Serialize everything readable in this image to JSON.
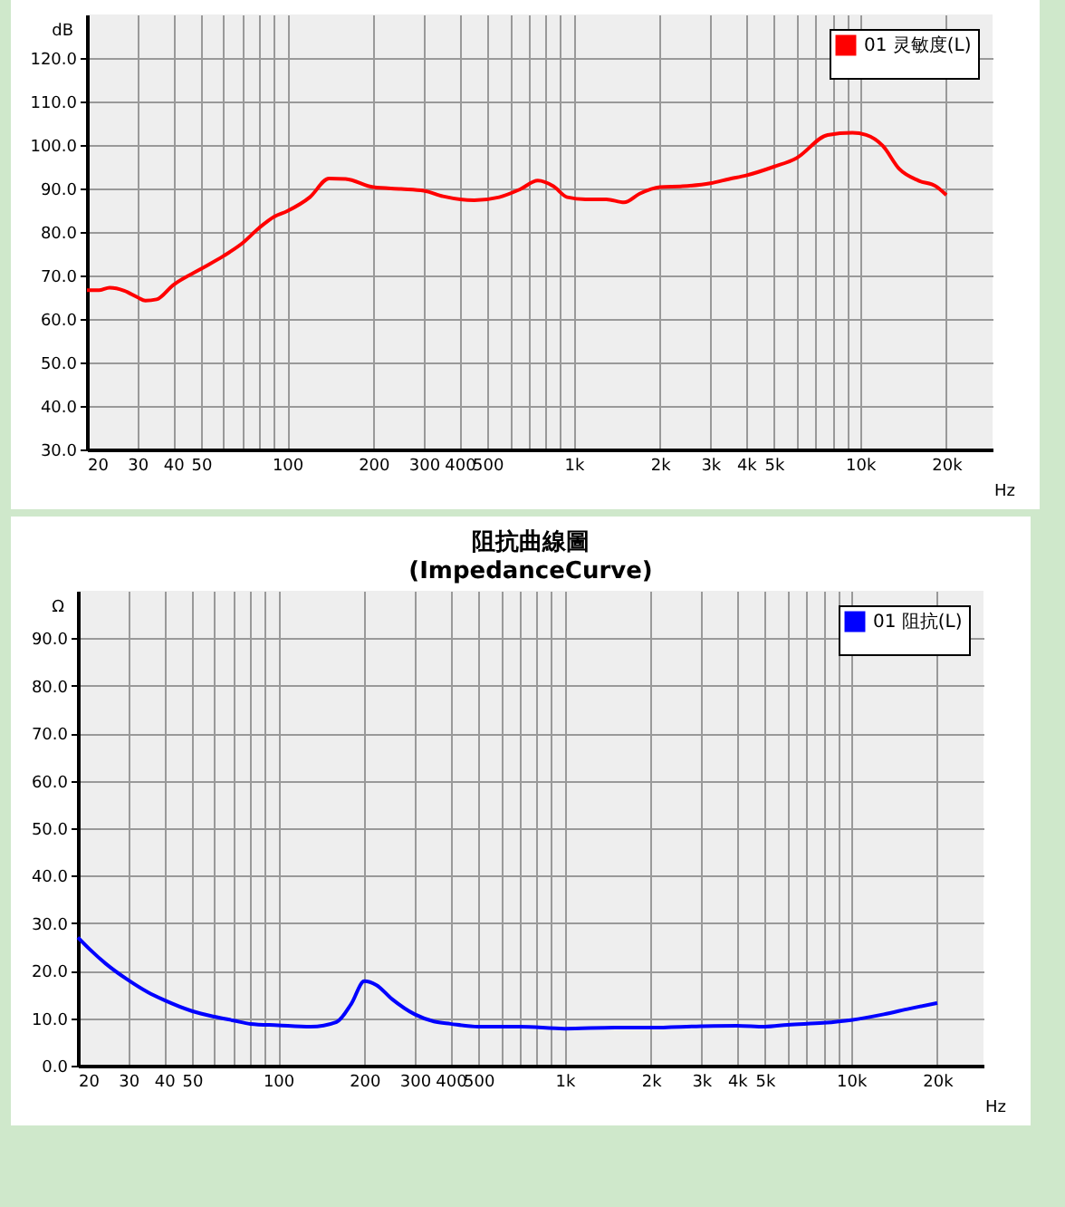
{
  "chart_data": [
    {
      "type": "line",
      "xlabel": "Hz",
      "ylabel": "dB",
      "log": "x",
      "grid": true,
      "legend": "top right",
      "xlim": [
        20,
        29000
      ],
      "ylim": [
        30,
        130
      ],
      "xticks": [
        20,
        30,
        40,
        50,
        {
          "value": 60,
          "label": null
        },
        {
          "value": 70,
          "label": null
        },
        {
          "value": 80,
          "label": null
        },
        {
          "value": 90,
          "label": null
        },
        100,
        200,
        300,
        400,
        500,
        {
          "value": 600,
          "label": null
        },
        {
          "value": 700,
          "label": null
        },
        {
          "value": 800,
          "label": null
        },
        {
          "value": 900,
          "label": null
        },
        {
          "value": 1000,
          "label": "1k"
        },
        {
          "value": 2000,
          "label": "2k"
        },
        {
          "value": 3000,
          "label": "3k"
        },
        {
          "value": 4000,
          "label": "4k"
        },
        {
          "value": 5000,
          "label": "5k"
        },
        {
          "value": 6000,
          "label": null
        },
        {
          "value": 7000,
          "label": null
        },
        {
          "value": 8000,
          "label": null
        },
        {
          "value": 9000,
          "label": null
        },
        {
          "value": 10000,
          "label": "10k"
        },
        {
          "value": 20000,
          "label": "20k"
        }
      ],
      "yticks": [
        {
          "value": 30,
          "label": "30.0"
        },
        {
          "value": 40,
          "label": "40.0"
        },
        {
          "value": 50,
          "label": "50.0"
        },
        {
          "value": 60,
          "label": "60.0"
        },
        {
          "value": 70,
          "label": "70.0"
        },
        {
          "value": 80,
          "label": "80.0"
        },
        {
          "value": 90,
          "label": "90.0"
        },
        {
          "value": 100,
          "label": "100.0"
        },
        {
          "value": 110,
          "label": "110.0"
        },
        {
          "value": 120,
          "label": "120.0"
        }
      ],
      "series": [
        {
          "name": "01 灵敏度(L)",
          "color": "#ff0000",
          "x": [
            20,
            22,
            24,
            27,
            30,
            32,
            35,
            40,
            50,
            60,
            70,
            80,
            90,
            100,
            120,
            140,
            160,
            200,
            250,
            300,
            350,
            450,
            550,
            650,
            750,
            850,
            950,
            1100,
            1300,
            1500,
            1700,
            2000,
            2400,
            3000,
            3500,
            4000,
            5000,
            6000,
            7700,
            9400,
            10500,
            12000,
            13700,
            16000,
            18400,
            20000
          ],
          "values": [
            66.6,
            66.6,
            67.2,
            66.5,
            65,
            64.2,
            64.5,
            67.8,
            71.5,
            74.5,
            77.5,
            81,
            83.5,
            84.8,
            88,
            92.3,
            92.2,
            90.3,
            89.9,
            89.5,
            88.2,
            87.3,
            88,
            89.8,
            91.8,
            90.5,
            88,
            87.5,
            87.5,
            86.8,
            88.8,
            90.3,
            90.5,
            91.2,
            92.2,
            93,
            95,
            97,
            102.3,
            102.8,
            102.3,
            99.8,
            94.5,
            91.8,
            90.5,
            88.5
          ]
        }
      ]
    },
    {
      "type": "line",
      "title": "阻抗曲線圖",
      "subtitle": "(ImpedanceCurve)",
      "xlabel": "Hz",
      "ylabel": "Ω",
      "log": "x",
      "grid": true,
      "legend": "top right",
      "xlim": [
        20,
        29000
      ],
      "ylim": [
        0,
        100
      ],
      "xticks": [
        20,
        30,
        40,
        50,
        {
          "value": 60,
          "label": null
        },
        {
          "value": 70,
          "label": null
        },
        {
          "value": 80,
          "label": null
        },
        {
          "value": 90,
          "label": null
        },
        100,
        200,
        300,
        400,
        500,
        {
          "value": 600,
          "label": null
        },
        {
          "value": 700,
          "label": null
        },
        {
          "value": 800,
          "label": null
        },
        {
          "value": 900,
          "label": null
        },
        {
          "value": 1000,
          "label": "1k"
        },
        {
          "value": 2000,
          "label": "2k"
        },
        {
          "value": 3000,
          "label": "3k"
        },
        {
          "value": 4000,
          "label": "4k"
        },
        {
          "value": 5000,
          "label": "5k"
        },
        {
          "value": 6000,
          "label": null
        },
        {
          "value": 7000,
          "label": null
        },
        {
          "value": 8000,
          "label": null
        },
        {
          "value": 9000,
          "label": null
        },
        {
          "value": 10000,
          "label": "10k"
        },
        {
          "value": 20000,
          "label": "20k"
        }
      ],
      "yticks": [
        {
          "value": 0,
          "label": "0.0"
        },
        {
          "value": 10,
          "label": "10.0"
        },
        {
          "value": 20,
          "label": "20.0"
        },
        {
          "value": 30,
          "label": "30.0"
        },
        {
          "value": 40,
          "label": "40.0"
        },
        {
          "value": 50,
          "label": "50.0"
        },
        {
          "value": 60,
          "label": "60.0"
        },
        {
          "value": 70,
          "label": "70.0"
        },
        {
          "value": 80,
          "label": "80.0"
        },
        {
          "value": 90,
          "label": "90.0"
        }
      ],
      "series": [
        {
          "name": "01 阻抗(L)",
          "color": "#0000ff",
          "x": [
            20,
            22,
            25,
            30,
            35,
            40,
            50,
            60,
            70,
            80,
            100,
            130,
            160,
            180,
            200,
            220,
            250,
            300,
            350,
            400,
            500,
            700,
            1000,
            1500,
            2000,
            3000,
            4000,
            5000,
            6000,
            8000,
            10000,
            13000,
            16000,
            20000
          ],
          "values": [
            27,
            24.5,
            21.5,
            18,
            15.5,
            13.8,
            11.5,
            10.3,
            9.5,
            8.8,
            8.5,
            8.2,
            9.2,
            13,
            17.8,
            17,
            14,
            10.8,
            9.3,
            8.8,
            8.2,
            8.2,
            7.8,
            8,
            8,
            8.3,
            8.4,
            8.2,
            8.6,
            9,
            9.6,
            10.8,
            12,
            13.2
          ]
        }
      ]
    }
  ]
}
